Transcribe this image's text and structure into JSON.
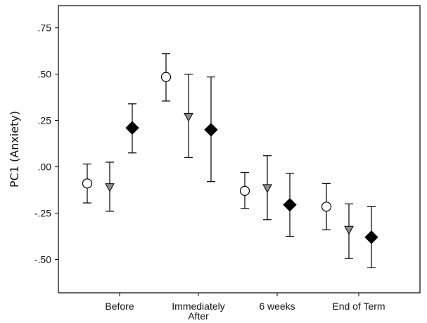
{
  "chart_data": {
    "type": "scatter",
    "title": "",
    "xlabel": "",
    "ylabel": "PC1 (Anxiety)",
    "categories": [
      "Before",
      "Immediately After",
      "6 weeks",
      "End of Term"
    ],
    "category_display": [
      [
        "Before"
      ],
      [
        "Immediately",
        "After"
      ],
      [
        "6 weeks"
      ],
      [
        "End of Term"
      ]
    ],
    "ylim": [
      -0.68,
      0.87
    ],
    "yticks": [
      0.75,
      0.5,
      0.25,
      0.0,
      -0.25,
      -0.5
    ],
    "ytick_labels": [
      ".75",
      ".50",
      ".25",
      ".00",
      "-.25",
      "-.50"
    ],
    "grid": false,
    "legend": "none",
    "series": [
      {
        "marker": "circle",
        "fill": "#ffffff",
        "values": [
          -0.09,
          0.485,
          -0.13,
          -0.215
        ],
        "err_low": [
          -0.195,
          0.355,
          -0.225,
          -0.34
        ],
        "err_high": [
          0.015,
          0.61,
          -0.03,
          -0.09
        ]
      },
      {
        "marker": "triangle-down",
        "fill": "#8c8c8c",
        "values": [
          -0.11,
          0.27,
          -0.115,
          -0.34
        ],
        "err_low": [
          -0.24,
          0.05,
          -0.285,
          -0.495
        ],
        "err_high": [
          0.025,
          0.5,
          0.06,
          -0.2
        ]
      },
      {
        "marker": "diamond",
        "fill": "#000000",
        "values": [
          0.21,
          0.2,
          -0.205,
          -0.38
        ],
        "err_low": [
          0.075,
          -0.08,
          -0.375,
          -0.545
        ],
        "err_high": [
          0.34,
          0.485,
          -0.035,
          -0.215
        ]
      }
    ]
  }
}
